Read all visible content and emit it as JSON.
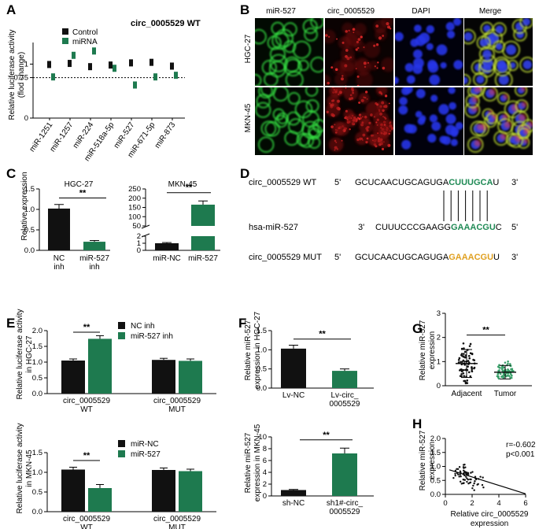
{
  "panels": [
    "A",
    "B",
    "C",
    "D",
    "E",
    "F",
    "G",
    "H"
  ],
  "colors": {
    "black": "#111111",
    "green": "#1e7a4f",
    "greenSeq": "#1f8a55",
    "orangeSeq": "#e0a020",
    "lightGreen": "#3aa06a"
  },
  "A": {
    "title": "circ_0005529 WT",
    "ylabel_1": "Relative luciferase activity",
    "ylabel_2": "(flod change)",
    "legend": [
      "Control",
      "miRNA"
    ],
    "chart_data": {
      "type": "scatter",
      "categories": [
        "miR-1251",
        "miR-1257",
        "miR-224",
        "miR-518a-5p",
        "miR-527",
        "miR-671-5p",
        "miR-873"
      ],
      "series": [
        {
          "name": "Control",
          "values": [
            1.0,
            1.02,
            0.96,
            0.99,
            1.03,
            1.04,
            0.97
          ]
        },
        {
          "name": "miRNA",
          "values": [
            0.77,
            1.17,
            1.25,
            0.93,
            0.62,
            0.77,
            0.8
          ]
        }
      ],
      "yticks": [
        "0",
        "0.75",
        "1"
      ],
      "ylim": [
        0,
        1.4
      ],
      "reference_line": 0.75
    }
  },
  "B": {
    "columns": [
      "miR-527",
      "circ_0005529",
      "DAPI",
      "Merge"
    ],
    "rows": [
      "HGC-27",
      "MKN-45"
    ]
  },
  "C": {
    "ylabel": "Relative expression",
    "left": {
      "title": "HGC-27",
      "chart_data": {
        "type": "bar",
        "categories": [
          "NC inh",
          "miR-527 inh"
        ],
        "values": [
          1.02,
          0.21
        ],
        "errors": [
          0.1,
          0.03
        ],
        "ylim": [
          0,
          1.5
        ],
        "yticks": [
          "0.0",
          "0.5",
          "1.0",
          "1.5"
        ]
      },
      "cat_lines": [
        [
          "NC",
          "inh"
        ],
        [
          "miR-527",
          "inh"
        ]
      ],
      "sig": "**"
    },
    "right": {
      "title": "MKN-45",
      "chart_data": {
        "type": "bar",
        "categories": [
          "miR-NC",
          "miR-527"
        ],
        "values": [
          1.0,
          165
        ],
        "errors": [
          0.1,
          20
        ],
        "yticks_upper": [
          "50",
          "100",
          "150",
          "200",
          "250"
        ],
        "yticks_lower": [
          "0",
          "1",
          "2"
        ]
      },
      "sig": "**"
    }
  },
  "D": {
    "row1": {
      "label": "circ_0005529 WT",
      "p5": "5'",
      "seq_black": "GCUCAACUGCAGUGA",
      "seq_color": "CUUUGCA",
      "seq_tail": "U",
      "p3": "3'"
    },
    "row2": {
      "label": "hsa-miR-527",
      "p3": "3'",
      "seq_black": "CUUUCCCGAAGG",
      "seq_color": "GAAACGU",
      "seq_tail": "C",
      "p5": "5'"
    },
    "row3": {
      "label": "circ_0005529 MUT",
      "p5": "5'",
      "seq_black": "GCUCAACUGCAGUGA",
      "seq_color": "GAAACGU",
      "seq_tail": "U",
      "p3": "3'"
    }
  },
  "E": {
    "top": {
      "ylabel_1": "Relative luciferase activity",
      "ylabel_2": "in HGC-27",
      "legend": [
        "NC inh",
        "miR-527 inh"
      ],
      "chart_data": {
        "type": "bar",
        "categories": [
          "circ_0005529 WT",
          "circ_0005529 MUT"
        ],
        "series": [
          {
            "name": "NC inh",
            "values": [
              1.05,
              1.07
            ]
          },
          {
            "name": "miR-527 inh",
            "values": [
              1.74,
              1.04
            ]
          }
        ],
        "ylim": [
          0,
          2.0
        ],
        "yticks": [
          "0.0",
          "0.5",
          "1.0",
          "1.5",
          "2.0"
        ]
      },
      "cat_lines": [
        [
          "circ_0005529",
          "WT"
        ],
        [
          "circ_0005529",
          "MUT"
        ]
      ],
      "sig": "**"
    },
    "bottom": {
      "ylabel_1": "Relative luciferase activity",
      "ylabel_2": "in MKN-45",
      "legend": [
        "miR-NC",
        "miR-527"
      ],
      "chart_data": {
        "type": "bar",
        "categories": [
          "circ_0005529 WT",
          "circ_0005529 MUT"
        ],
        "series": [
          {
            "name": "miR-NC",
            "values": [
              1.07,
              1.06
            ]
          },
          {
            "name": "miR-527",
            "values": [
              0.6,
              1.03
            ]
          }
        ],
        "ylim": [
          0,
          1.5
        ],
        "yticks": [
          "0.0",
          "0.5",
          "1.0",
          "1.5"
        ]
      },
      "cat_lines": [
        [
          "circ_0005529",
          "WT"
        ],
        [
          "circ_0005529",
          "MUT"
        ]
      ],
      "sig": "**"
    }
  },
  "F": {
    "top": {
      "ylabel_1": "Relative miR-527",
      "ylabel_2": "expression in HGC-27",
      "chart_data": {
        "type": "bar",
        "categories": [
          "Lv-NC",
          "Lv-circ_0005529"
        ],
        "values": [
          1.03,
          0.45
        ],
        "errors": [
          0.09,
          0.05
        ],
        "ylim": [
          0,
          1.5
        ],
        "yticks": [
          "0.0",
          "0.5",
          "1.0",
          "1.5"
        ]
      },
      "cat_lines": [
        [
          "Lv-NC"
        ],
        [
          "Lv-circ_",
          "0005529"
        ]
      ],
      "sig": "**"
    },
    "bottom": {
      "ylabel_1": "Relative miR-527",
      "ylabel_2": "expression in MKN-45",
      "chart_data": {
        "type": "bar",
        "categories": [
          "sh-NC",
          "sh1#-circ_0005529"
        ],
        "values": [
          1.0,
          7.2
        ],
        "errors": [
          0.1,
          0.9
        ],
        "ylim": [
          0,
          10
        ],
        "yticks": [
          "0",
          "2",
          "4",
          "6",
          "8",
          "10"
        ]
      },
      "cat_lines": [
        [
          "sh-NC"
        ],
        [
          "sh1#-circ_",
          "0005529"
        ]
      ],
      "sig": "**"
    }
  },
  "G": {
    "ylabel_1": "Relative miR-527",
    "ylabel_2": "expression",
    "chart_data": {
      "type": "scatter",
      "categories": [
        "Adjacent",
        "Tumor"
      ],
      "means": [
        0.92,
        0.56
      ],
      "sd": [
        0.58,
        0.28
      ],
      "ylim": [
        0,
        3
      ],
      "yticks": [
        "0",
        "1",
        "2",
        "3"
      ]
    },
    "sig": "**"
  },
  "H": {
    "ylabel_1": "Relative miR-527",
    "ylabel_2": "expression",
    "xlabel_1": "Relative circ_0005529",
    "xlabel_2": "expression",
    "r": "r=-0.602",
    "p": "p<0.001",
    "chart_data": {
      "type": "scatter",
      "xlim": [
        0,
        6
      ],
      "ylim": [
        0,
        2.0
      ],
      "xticks": [
        "0",
        "2",
        "4",
        "6"
      ],
      "yticks": [
        "0.0",
        "0.5",
        "1.0",
        "1.5",
        "2.0"
      ],
      "fit": {
        "x1": 0.3,
        "y1": 0.88,
        "x2": 6.0,
        "y2": 0.02
      }
    }
  }
}
